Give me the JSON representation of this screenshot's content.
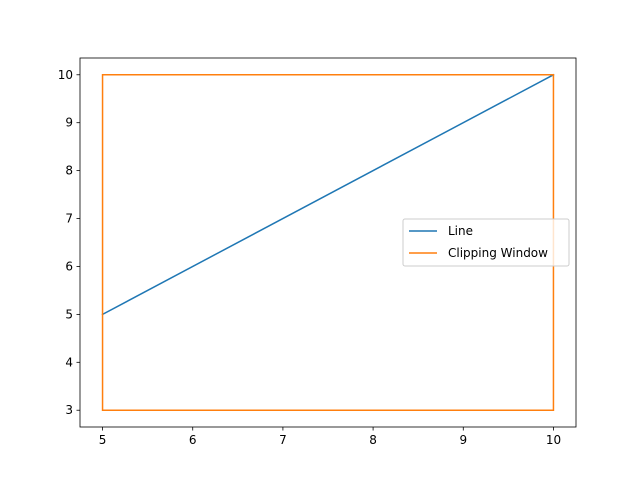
{
  "chart_data": {
    "type": "line",
    "title": "",
    "xlabel": "",
    "ylabel": "",
    "xlim": [
      4.75,
      10.25
    ],
    "ylim": [
      2.65,
      10.35
    ],
    "xticks": [
      5,
      6,
      7,
      8,
      9,
      10
    ],
    "yticks": [
      3,
      4,
      5,
      6,
      7,
      8,
      9,
      10
    ],
    "grid": false,
    "legend": "center-right",
    "series": [
      {
        "name": "Line",
        "color": "#1f77b4",
        "x": [
          5,
          10
        ],
        "y": [
          5,
          10
        ]
      },
      {
        "name": "Clipping Window",
        "color": "#ff7f0e",
        "x": [
          5,
          10,
          10,
          5,
          5
        ],
        "y": [
          3,
          3,
          10,
          10,
          3
        ]
      }
    ]
  }
}
